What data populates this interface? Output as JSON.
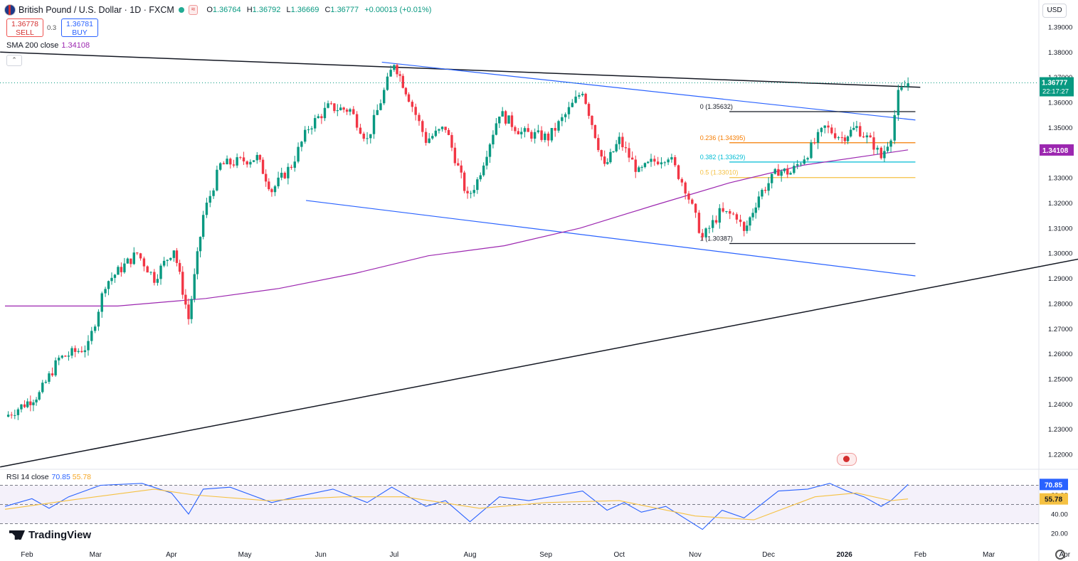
{
  "header": {
    "symbol": "British Pound / U.S. Dollar · 1D · FXCM",
    "open_key": "O",
    "open": "1.36764",
    "high_key": "H",
    "high": "1.36792",
    "low_key": "L",
    "low": "1.36669",
    "close_key": "C",
    "close": "1.36777",
    "change": "+0.00013 (+0.01%)",
    "sell_price": "1.36778",
    "sell_label": "SELL",
    "buy_price": "1.36781",
    "buy_label": "BUY",
    "spread": "0.3",
    "currency": "USD"
  },
  "sma_label": {
    "name": "SMA 200 close",
    "value": "1.34108"
  },
  "rsi_label": {
    "name": "RSI 14 close",
    "rsi": "70.85",
    "ma": "55.78"
  },
  "brand": "TradingView",
  "colors": {
    "up": "#089981",
    "down": "#f23645",
    "sma": "#9c27b0",
    "rsi": "#2962ff",
    "rsi_ma": "#f5c142",
    "channel": "#2962ff",
    "trend": "#131722",
    "fib_0236": "#f57c00",
    "fib_0382": "#00bcd4",
    "fib_05": "#f5c142"
  },
  "chart_data": [
    {
      "type": "candlestick",
      "title": "British Pound / U.S. Dollar · 1D · FXCM",
      "x_tick_labels": [
        "Feb",
        "Mar",
        "Apr",
        "May",
        "Jun",
        "Jul",
        "Aug",
        "Sep",
        "Oct",
        "Nov",
        "Dec",
        "2026",
        "Feb",
        "Mar",
        "Apr"
      ],
      "y_tick_labels": [
        "1.39000",
        "1.38000",
        "1.37000",
        "1.36000",
        "1.35000",
        "1.34000",
        "1.33000",
        "1.32000",
        "1.31000",
        "1.30000",
        "1.29000",
        "1.28000",
        "1.27000",
        "1.26000",
        "1.25000",
        "1.24000",
        "1.23000",
        "1.22000"
      ],
      "ylim": [
        1.2155,
        1.3945
      ],
      "price_badge": {
        "value": "1.36777",
        "countdown": "22:17:27"
      },
      "sma_badge": "1.34108",
      "close_path": [
        [
          "2025-01-23",
          1.235
        ],
        [
          "2025-01-31",
          1.24
        ],
        [
          "2025-02-06",
          1.244
        ],
        [
          "2025-02-14",
          1.258
        ],
        [
          "2025-02-26",
          1.263
        ],
        [
          "2025-03-05",
          1.288
        ],
        [
          "2025-03-18",
          1.3
        ],
        [
          "2025-03-25",
          1.29
        ],
        [
          "2025-04-02",
          1.302
        ],
        [
          "2025-04-08",
          1.274
        ],
        [
          "2025-04-14",
          1.315
        ],
        [
          "2025-04-21",
          1.335
        ],
        [
          "2025-05-06",
          1.338
        ],
        [
          "2025-05-12",
          1.325
        ],
        [
          "2025-05-20",
          1.335
        ],
        [
          "2025-05-27",
          1.35
        ],
        [
          "2025-06-04",
          1.358
        ],
        [
          "2025-06-13",
          1.357
        ],
        [
          "2025-06-20",
          1.345
        ],
        [
          "2025-07-01",
          1.376
        ],
        [
          "2025-07-07",
          1.362
        ],
        [
          "2025-07-14",
          1.345
        ],
        [
          "2025-07-22",
          1.35
        ],
        [
          "2025-07-31",
          1.322
        ],
        [
          "2025-08-04",
          1.329
        ],
        [
          "2025-08-13",
          1.356
        ],
        [
          "2025-08-22",
          1.348
        ],
        [
          "2025-09-02",
          1.346
        ],
        [
          "2025-09-09",
          1.355
        ],
        [
          "2025-09-16",
          1.365
        ],
        [
          "2025-09-25",
          1.334
        ],
        [
          "2025-10-01",
          1.345
        ],
        [
          "2025-10-09",
          1.332
        ],
        [
          "2025-10-14",
          1.336
        ],
        [
          "2025-10-21",
          1.339
        ],
        [
          "2025-10-28",
          1.326
        ],
        [
          "2025-11-04",
          1.306
        ],
        [
          "2025-11-11",
          1.316
        ],
        [
          "2025-11-18",
          1.315
        ],
        [
          "2025-11-21",
          1.308
        ],
        [
          "2025-11-27",
          1.323
        ],
        [
          "2025-12-05",
          1.333
        ],
        [
          "2025-12-10",
          1.332
        ],
        [
          "2025-12-17",
          1.34
        ],
        [
          "2025-12-24",
          1.35
        ],
        [
          "2025-12-31",
          1.346
        ],
        [
          "2026-01-06",
          1.35
        ],
        [
          "2026-01-13",
          1.343
        ],
        [
          "2026-01-16",
          1.338
        ],
        [
          "2026-01-20",
          1.347
        ],
        [
          "2026-01-23",
          1.363
        ],
        [
          "2026-01-27",
          1.3678
        ]
      ],
      "sma200_path": [
        [
          "2025-01-23",
          1.279
        ],
        [
          "2025-03-10",
          1.279
        ],
        [
          "2025-04-15",
          1.282
        ],
        [
          "2025-05-15",
          1.286
        ],
        [
          "2025-06-15",
          1.292
        ],
        [
          "2025-07-15",
          1.299
        ],
        [
          "2025-08-15",
          1.303
        ],
        [
          "2025-09-15",
          1.31
        ],
        [
          "2025-10-15",
          1.319
        ],
        [
          "2025-11-15",
          1.328
        ],
        [
          "2025-12-15",
          1.335
        ],
        [
          "2026-01-27",
          1.3411
        ]
      ],
      "fibonacci": [
        {
          "label": "0 (1.35632)",
          "value": 1.35632
        },
        {
          "label": "0.236 (1.34395)",
          "value": 1.34395
        },
        {
          "label": "0.382 (1.33629)",
          "value": 1.33629
        },
        {
          "label": "0.5 (1.33010)",
          "value": 1.3301
        },
        {
          "label": "1 (1.30387)",
          "value": 1.30387
        }
      ],
      "trendlines": [
        {
          "name": "upper resistance",
          "from": [
            "2025-01-21",
            1.38
          ],
          "to": [
            "2026-02-01",
            1.366
          ]
        },
        {
          "name": "channel top",
          "from": [
            "2025-06-26",
            1.376
          ],
          "to": [
            "2026-01-30",
            1.353
          ]
        },
        {
          "name": "channel bottom",
          "from": [
            "2025-05-26",
            1.321
          ],
          "to": [
            "2026-01-30",
            1.291
          ]
        },
        {
          "name": "long-term support",
          "from": [
            "2025-01-21",
            1.215
          ],
          "to": [
            "2026-05-05",
            1.303
          ]
        }
      ]
    },
    {
      "type": "line",
      "title": "RSI 14 close",
      "y_tick_labels": [
        "60.00",
        "40.00",
        "20.00"
      ],
      "ylim": [
        20,
        80
      ],
      "bands": [
        30,
        50,
        70
      ],
      "rsi_badge": "70.85",
      "ma_badge": "55.78",
      "rsi_path": [
        [
          "2025-01-23",
          48
        ],
        [
          "2025-02-03",
          56
        ],
        [
          "2025-02-10",
          46
        ],
        [
          "2025-02-18",
          58
        ],
        [
          "2025-03-03",
          70
        ],
        [
          "2025-03-20",
          72
        ],
        [
          "2025-04-01",
          62
        ],
        [
          "2025-04-08",
          40
        ],
        [
          "2025-04-14",
          66
        ],
        [
          "2025-04-25",
          68
        ],
        [
          "2025-05-12",
          52
        ],
        [
          "2025-05-22",
          58
        ],
        [
          "2025-06-06",
          66
        ],
        [
          "2025-06-20",
          52
        ],
        [
          "2025-06-30",
          68
        ],
        [
          "2025-07-14",
          48
        ],
        [
          "2025-07-22",
          54
        ],
        [
          "2025-08-01",
          32
        ],
        [
          "2025-08-13",
          58
        ],
        [
          "2025-08-25",
          54
        ],
        [
          "2025-09-16",
          64
        ],
        [
          "2025-09-26",
          44
        ],
        [
          "2025-10-03",
          52
        ],
        [
          "2025-10-10",
          42
        ],
        [
          "2025-10-20",
          48
        ],
        [
          "2025-11-04",
          24
        ],
        [
          "2025-11-12",
          44
        ],
        [
          "2025-11-21",
          36
        ],
        [
          "2025-12-05",
          64
        ],
        [
          "2025-12-17",
          66
        ],
        [
          "2025-12-26",
          72
        ],
        [
          "2026-01-02",
          64
        ],
        [
          "2026-01-09",
          58
        ],
        [
          "2026-01-16",
          48
        ],
        [
          "2026-01-20",
          54
        ],
        [
          "2026-01-27",
          70.85
        ]
      ],
      "rsi_ma_path": [
        [
          "2025-01-23",
          45
        ],
        [
          "2025-02-20",
          55
        ],
        [
          "2025-03-25",
          66
        ],
        [
          "2025-04-10",
          60
        ],
        [
          "2025-05-10",
          54
        ],
        [
          "2025-06-10",
          58
        ],
        [
          "2025-07-05",
          58
        ],
        [
          "2025-08-05",
          46
        ],
        [
          "2025-09-01",
          52
        ],
        [
          "2025-10-01",
          54
        ],
        [
          "2025-11-01",
          38
        ],
        [
          "2025-11-25",
          34
        ],
        [
          "2025-12-20",
          58
        ],
        [
          "2026-01-06",
          62
        ],
        [
          "2026-01-20",
          54
        ],
        [
          "2026-01-27",
          55.78
        ]
      ]
    }
  ]
}
